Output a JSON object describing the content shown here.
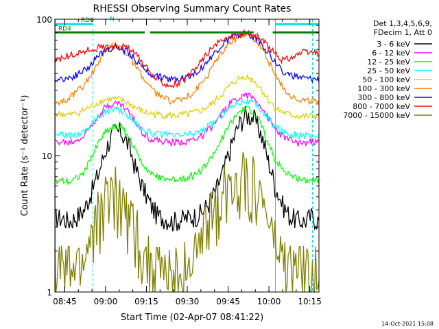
{
  "chart_data": {
    "type": "line",
    "title": "RHESSI Observing Summary Count Rates",
    "xlabel": "Start Time (02-Apr-07 08:41:22)",
    "ylabel": "Count Rate (s⁻¹ detector⁻¹)",
    "yscale": "log",
    "ylim": [
      1,
      100
    ],
    "xlim_minutes": [
      0,
      97
    ],
    "x_tick_labels": [
      "08:45",
      "09:00",
      "09:15",
      "09:30",
      "09:45",
      "10:00",
      "10:15"
    ],
    "x_tick_minutes": [
      3.63,
      18.63,
      33.63,
      48.63,
      63.63,
      78.63,
      93.63
    ],
    "y_tick_labels": [
      "1",
      "10",
      "100"
    ],
    "y_tick_values": [
      1,
      10,
      100
    ],
    "legend_header": [
      "Det 1,3,4,5,6,9,",
      "FDecim 1, Att 0"
    ],
    "legend_position": "right",
    "timestamp": "14-Oct-2021 15:08",
    "annotations": [
      {
        "label": "RD0",
        "color": "#00e0e0",
        "bars": [
          [
            0,
            14
          ],
          [
            81,
            97
          ]
        ],
        "level": 92
      },
      {
        "label": "RD4",
        "color": "#008000",
        "bars": [
          [
            0,
            33
          ],
          [
            35,
            73
          ],
          [
            80,
            97
          ]
        ],
        "level": 80
      },
      {
        "label": "N",
        "color": "#00e0e0",
        "bars": [],
        "level": 94
      }
    ],
    "series": [
      {
        "name": "3 - 6 keV",
        "color": "#000000",
        "values": [
          3.5,
          3.5,
          3.3,
          3.6,
          4.0,
          5.4,
          7.5,
          11.3,
          14.8,
          15.0,
          12.0,
          8.0,
          5.8,
          4.4,
          3.6,
          3.5,
          3.3,
          3.4,
          3.5,
          3.6,
          3.8,
          4.5,
          5.6,
          7.7,
          11.5,
          16.5,
          20.0,
          19.2,
          15.0,
          9.5,
          6.0,
          4.4,
          3.6,
          3.4,
          3.3,
          3.6,
          3.3
        ]
      },
      {
        "name": "6 - 12 keV",
        "color": "#ff00ff",
        "values": [
          12.5,
          12.6,
          12.4,
          13.0,
          14.0,
          16.8,
          20.2,
          23.1,
          24.2,
          23.8,
          21.2,
          17.5,
          14.8,
          13.3,
          12.9,
          12.6,
          12.4,
          12.6,
          12.8,
          13.2,
          14.0,
          15.5,
          17.6,
          21.0,
          24.4,
          27.0,
          28.0,
          26.5,
          23.5,
          19.0,
          15.8,
          14.0,
          13.0,
          12.5,
          12.4,
          12.6,
          12.5
        ]
      },
      {
        "name": "12 - 25 keV",
        "color": "#00ff00",
        "values": [
          6.5,
          6.6,
          6.5,
          6.9,
          7.6,
          9.6,
          12.7,
          15.2,
          16.4,
          16.1,
          13.9,
          10.7,
          8.7,
          7.5,
          7.0,
          6.8,
          6.6,
          6.8,
          6.9,
          7.2,
          7.8,
          9.1,
          11.0,
          14.0,
          17.5,
          20.5,
          22.0,
          21.0,
          17.5,
          12.5,
          9.5,
          8.0,
          7.2,
          6.8,
          6.6,
          6.7,
          6.6
        ]
      },
      {
        "name": "25 - 50 keV",
        "color": "#00ffff",
        "values": [
          14.0,
          14.1,
          13.9,
          14.4,
          15.2,
          17.3,
          19.5,
          21.2,
          21.7,
          21.4,
          19.8,
          17.5,
          15.7,
          14.7,
          14.4,
          14.2,
          14.0,
          14.1,
          14.3,
          14.6,
          15.3,
          16.5,
          18.2,
          20.5,
          23.0,
          24.8,
          25.3,
          24.3,
          22.0,
          18.8,
          16.4,
          15.1,
          14.5,
          14.1,
          13.9,
          14.0,
          14.0
        ]
      },
      {
        "name": "50 - 100 keV",
        "color": "#e0d000",
        "values": [
          20.0,
          20.2,
          19.8,
          20.5,
          21.5,
          23.0,
          24.6,
          25.8,
          26.0,
          25.6,
          24.3,
          22.5,
          21.0,
          20.3,
          20.0,
          19.8,
          19.6,
          19.8,
          20.1,
          20.6,
          21.5,
          23.0,
          25.5,
          29.0,
          33.0,
          36.5,
          38.0,
          36.0,
          31.5,
          26.0,
          22.5,
          20.8,
          20.0,
          19.5,
          19.3,
          19.5,
          19.4
        ]
      },
      {
        "name": "100 - 300 keV",
        "color": "#ff7f00",
        "values": [
          24.0,
          25.0,
          26.5,
          29.0,
          33.0,
          39.0,
          48.0,
          58.0,
          64.0,
          63.0,
          55.0,
          45.0,
          37.0,
          31.0,
          28.0,
          26.0,
          25.0,
          25.5,
          27.0,
          29.5,
          34.0,
          40.0,
          49.0,
          59.0,
          68.0,
          75.0,
          78.0,
          74.0,
          64.0,
          50.0,
          39.0,
          32.0,
          28.0,
          26.0,
          25.0,
          25.0,
          24.8
        ]
      },
      {
        "name": "300 - 800 keV",
        "color": "#0000ff",
        "values": [
          36.0,
          36.5,
          37.0,
          39.0,
          42.0,
          47.0,
          54.0,
          60.0,
          62.0,
          61.0,
          57.0,
          50.0,
          44.0,
          40.0,
          38.0,
          37.0,
          36.5,
          37.0,
          38.0,
          40.0,
          44.0,
          50.0,
          58.0,
          66.0,
          73.0,
          77.0,
          78.0,
          75.0,
          68.0,
          58.0,
          48.0,
          42.0,
          39.0,
          37.5,
          36.5,
          36.0,
          35.8
        ]
      },
      {
        "name": "800 - 7000 keV",
        "color": "#ff0000",
        "values": [
          50.0,
          52.0,
          54.0,
          56.0,
          58.0,
          60.0,
          62.0,
          63.0,
          63.5,
          63.0,
          61.0,
          55.0,
          47.0,
          40.0,
          36.0,
          34.0,
          33.0,
          34.0,
          37.0,
          42.0,
          50.0,
          58.0,
          65.0,
          71.0,
          75.0,
          78.0,
          79.0,
          77.0,
          72.0,
          64.0,
          56.0,
          50.0,
          52.0,
          55.0,
          57.0,
          57.0,
          56.0
        ]
      },
      {
        "name": "7000 - 15000 keV",
        "color": "#808000",
        "values": [
          1.5,
          1.5,
          1.4,
          1.5,
          1.7,
          2.6,
          3.8,
          5.0,
          5.5,
          5.2,
          4.0,
          2.8,
          2.0,
          1.6,
          1.5,
          1.4,
          1.4,
          1.5,
          1.6,
          1.8,
          2.3,
          3.2,
          4.3,
          5.6,
          6.4,
          6.8,
          7.0,
          6.5,
          5.0,
          3.4,
          2.2,
          1.7,
          1.5,
          1.5,
          1.4,
          1.4,
          1.4
        ]
      }
    ]
  }
}
